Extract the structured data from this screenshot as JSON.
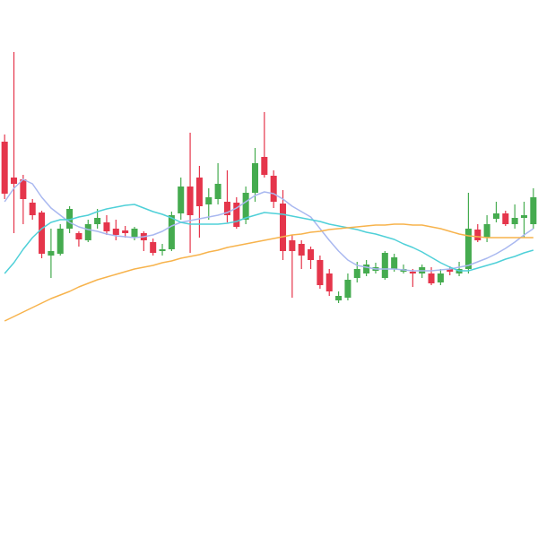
{
  "chart_data": {
    "type": "candlestick",
    "categories": [
      null,
      null,
      null,
      null,
      null,
      null,
      null,
      null,
      null,
      null,
      null,
      null,
      null,
      null,
      null,
      null,
      null,
      null,
      null,
      null,
      null,
      null,
      null,
      null,
      null,
      null,
      null,
      null,
      null,
      null,
      null,
      null,
      null,
      null,
      null,
      null,
      null,
      null,
      null,
      null,
      null,
      null,
      null,
      null,
      null,
      null,
      null,
      null,
      null,
      null,
      null,
      null,
      null,
      null,
      null,
      null,
      null,
      null
    ],
    "ylim": [
      0,
      600
    ],
    "up_color": "#45ab4f",
    "down_color": "#e5354b",
    "open": [
      442,
      402,
      400,
      374,
      363,
      315,
      317,
      345,
      340,
      332,
      350,
      352,
      345,
      343,
      335,
      340,
      330,
      320,
      322,
      362,
      392,
      402,
      372,
      378,
      375,
      374,
      355,
      385,
      425,
      404,
      373,
      332,
      328,
      322,
      310,
      295,
      265,
      268,
      290,
      295,
      298,
      290,
      300,
      297,
      297,
      295,
      295,
      285,
      300,
      295,
      300,
      344,
      335,
      356,
      362,
      350,
      357,
      350
    ],
    "high": [
      450,
      542,
      405,
      378,
      365,
      345,
      350,
      370,
      342,
      355,
      367,
      360,
      355,
      348,
      347,
      342,
      334,
      328,
      364,
      402,
      452,
      415,
      390,
      418,
      410,
      380,
      392,
      435,
      475,
      410,
      388,
      338,
      332,
      325,
      315,
      300,
      275,
      295,
      308,
      310,
      307,
      320,
      317,
      305,
      300,
      305,
      302,
      300,
      303,
      308,
      385,
      350,
      360,
      375,
      365,
      372,
      375,
      390
    ],
    "low": [
      378,
      340,
      350,
      355,
      312,
      290,
      315,
      340,
      325,
      330,
      345,
      338,
      332,
      335,
      332,
      320,
      315,
      315,
      320,
      355,
      318,
      335,
      355,
      372,
      352,
      345,
      350,
      375,
      402,
      368,
      310,
      268,
      300,
      300,
      278,
      270,
      262,
      265,
      285,
      292,
      295,
      288,
      297,
      295,
      280,
      290,
      282,
      282,
      293,
      292,
      295,
      330,
      330,
      352,
      348,
      345,
      335,
      345
    ],
    "close": [
      384,
      395,
      378,
      360,
      317,
      320,
      345,
      367,
      333,
      350,
      357,
      342,
      338,
      340,
      345,
      332,
      318,
      322,
      360,
      392,
      360,
      370,
      380,
      395,
      360,
      347,
      385,
      418,
      405,
      375,
      320,
      320,
      315,
      310,
      282,
      275,
      270,
      288,
      300,
      305,
      302,
      318,
      313,
      300,
      295,
      302,
      284,
      295,
      297,
      300,
      345,
      332,
      350,
      362,
      350,
      357,
      360,
      380
    ],
    "moving_averages": [
      {
        "color": "#a9b8f0",
        "values": [
          375,
          390,
          400,
          395,
          380,
          368,
          360,
          352,
          347,
          344,
          342,
          339,
          337,
          336,
          335,
          336,
          338,
          342,
          348,
          352,
          354,
          356,
          358,
          360,
          363,
          368,
          375,
          382,
          386,
          384,
          378,
          370,
          364,
          358,
          345,
          332,
          320,
          310,
          304,
          302,
          300,
          300,
          300,
          299,
          298,
          298,
          298,
          299,
          300,
          302,
          304,
          308,
          312,
          317,
          323,
          330,
          338,
          345
        ]
      },
      {
        "color": "#4fd0d8",
        "values": [
          295,
          307,
          322,
          335,
          345,
          352,
          355,
          355,
          358,
          360,
          364,
          367,
          369,
          371,
          372,
          368,
          364,
          361,
          357,
          352,
          350,
          350,
          350,
          350,
          351,
          353,
          357,
          360,
          363,
          362,
          361,
          359,
          357,
          355,
          353,
          350,
          348,
          346,
          344,
          341,
          339,
          336,
          333,
          328,
          324,
          319,
          313,
          307,
          302,
          298,
          298,
          301,
          304,
          307,
          311,
          314,
          318,
          321
        ]
      },
      {
        "color": "#f7b34c",
        "values": [
          242,
          247,
          252,
          257,
          262,
          267,
          271,
          275,
          280,
          284,
          288,
          291,
          294,
          297,
          300,
          302,
          304,
          307,
          309,
          312,
          314,
          316,
          319,
          321,
          324,
          326,
          328,
          330,
          332,
          334,
          336,
          338,
          339,
          341,
          342,
          344,
          345,
          346,
          347,
          348,
          349,
          349,
          350,
          350,
          349,
          349,
          347,
          345,
          342,
          339,
          337,
          336,
          335,
          335,
          335,
          335,
          335,
          335
        ]
      }
    ]
  }
}
